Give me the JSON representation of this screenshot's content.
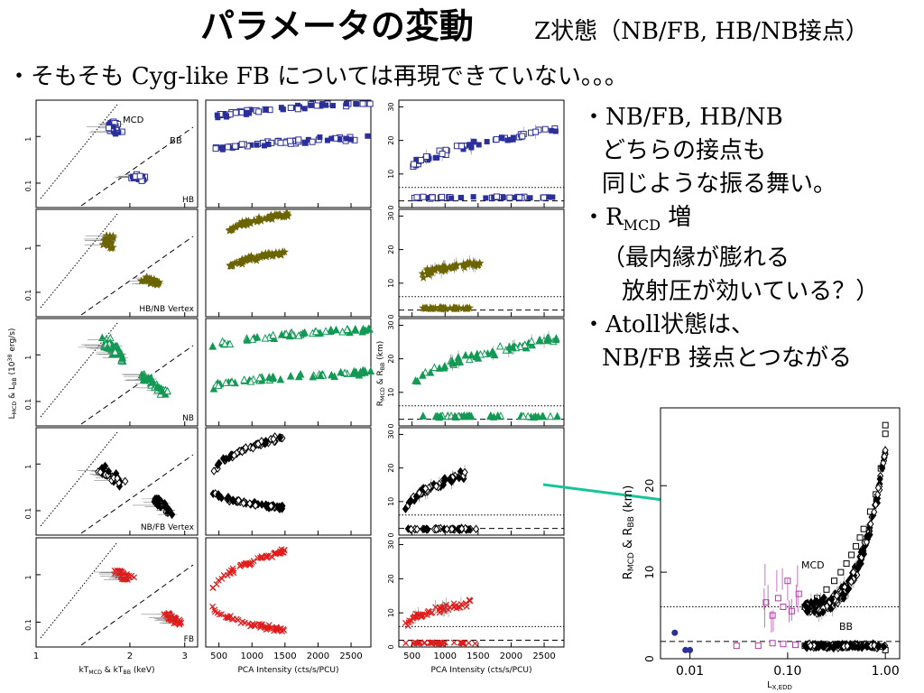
{
  "title": "パラメータの変動",
  "subtitle": "Z状態（NB/FB, HB/NB接点）",
  "bullet": "・そもそも Cyg-like FB については再現できていない。。。",
  "notes": {
    "line1": "・NB/FB, HB/NB",
    "line2": "どちらの接点も",
    "line3": "同じような振る舞い。",
    "line4_prefix": "・R",
    "line4_sub": "MCD",
    "line4_suffix": " 増",
    "line5": "（最内縁が膨れる",
    "line6": "放射圧が効いている？）",
    "line7": "・Atoll状態は、",
    "line8": "NB/FB 接点とつながる"
  },
  "chart_data": [
    {
      "type": "scatter",
      "name": "grid",
      "colors": [
        "#2b2f9a",
        "#6b6400",
        "#129a55",
        "#000000",
        "#e21b1b"
      ],
      "row_labels": [
        "HB",
        "HB/NB Vertex",
        "NB",
        "NB/FB Vertex",
        "FB"
      ],
      "columns": [
        {
          "panel": "luminosity-temperature",
          "xlabel_parts": [
            "kT",
            "MCD",
            " & kT",
            "BB",
            " (keV)"
          ],
          "ylabel_parts": [
            "L",
            "MCD",
            " & L",
            "BB",
            " (10",
            "38",
            " erg/s)"
          ],
          "xscale": "log",
          "yscale": "log",
          "xlim": [
            1,
            3.3
          ],
          "ylim": [
            0.03,
            6
          ],
          "xticks": [
            "1",
            "2",
            "3"
          ],
          "yticks": [
            "0.1",
            "1"
          ],
          "annotations": [
            "MCD",
            "BB"
          ]
        },
        {
          "panel": "temperature-intensity",
          "xlabel": "PCA Intensity (cts/s/PCU)",
          "xlim": [
            300,
            2800
          ],
          "xticks": [
            "500",
            "1000",
            "1500",
            "2000",
            "2500"
          ]
        },
        {
          "panel": "radius-intensity",
          "xlabel": "PCA Intensity (cts/s/PCU)",
          "ylabel_parts": [
            "R",
            "MCD",
            " & R",
            "BB",
            " (km)"
          ],
          "xlim": [
            300,
            2800
          ],
          "ylim": [
            0,
            32
          ],
          "xticks": [
            "500",
            "1000",
            "1500",
            "2000",
            "2500"
          ],
          "yticks": [
            "0",
            "10",
            "20",
            "30"
          ],
          "hlines": [
            6,
            2
          ]
        }
      ]
    },
    {
      "type": "scatter",
      "name": "inset",
      "xlabel_parts": [
        "L",
        "X,EDD"
      ],
      "ylabel_parts": [
        "R",
        "MCD",
        " & R",
        "BB",
        " (km)"
      ],
      "xscale": "log",
      "xlim": [
        0.005,
        1.4
      ],
      "ylim": [
        0,
        29
      ],
      "xticks": [
        "0.01",
        "0.10",
        "1.00"
      ],
      "yticks": [
        "0",
        "10",
        "20"
      ],
      "hlines": [
        6,
        2
      ],
      "annotations": [
        "MCD",
        "BB"
      ],
      "series": [
        {
          "name": "",
          "color": "#2b2f9a",
          "x": [
            0.007,
            0.009,
            0.01
          ],
          "y": [
            3.0,
            1.0,
            1.0
          ]
        },
        {
          "name": "",
          "color": "#b03aa6",
          "x": [
            0.03,
            0.05,
            0.07,
            0.09,
            0.12
          ],
          "y": [
            1.5,
            1.5,
            1.8,
            1.7,
            1.6
          ]
        },
        {
          "name": "",
          "color": "#b03aa6",
          "x": [
            0.06,
            0.07,
            0.08,
            0.09,
            0.1,
            0.11,
            0.13,
            0.15
          ],
          "y": [
            6.5,
            5.0,
            7.0,
            6.0,
            9.0,
            5.5,
            7.5,
            6.0
          ]
        },
        {
          "name": "",
          "color": "#000000",
          "x": [
            0.15,
            0.2,
            0.25,
            0.3,
            0.35,
            0.4,
            0.45,
            0.5,
            0.55,
            0.6,
            0.7,
            0.8,
            0.9,
            1.0,
            1.0
          ],
          "y": [
            6,
            7,
            8,
            9,
            10,
            11,
            12,
            13,
            14,
            15,
            17,
            19,
            22,
            26,
            27
          ]
        },
        {
          "name": "",
          "color": "#000000",
          "x": [
            0.15,
            0.2,
            0.25,
            0.3,
            0.4,
            0.5,
            0.6,
            0.7,
            0.8,
            0.9,
            1.0
          ],
          "y": [
            1.5,
            1.6,
            1.5,
            1.6,
            1.5,
            1.6,
            1.5,
            1.4,
            1.5,
            1.4,
            1.0
          ]
        }
      ]
    }
  ]
}
